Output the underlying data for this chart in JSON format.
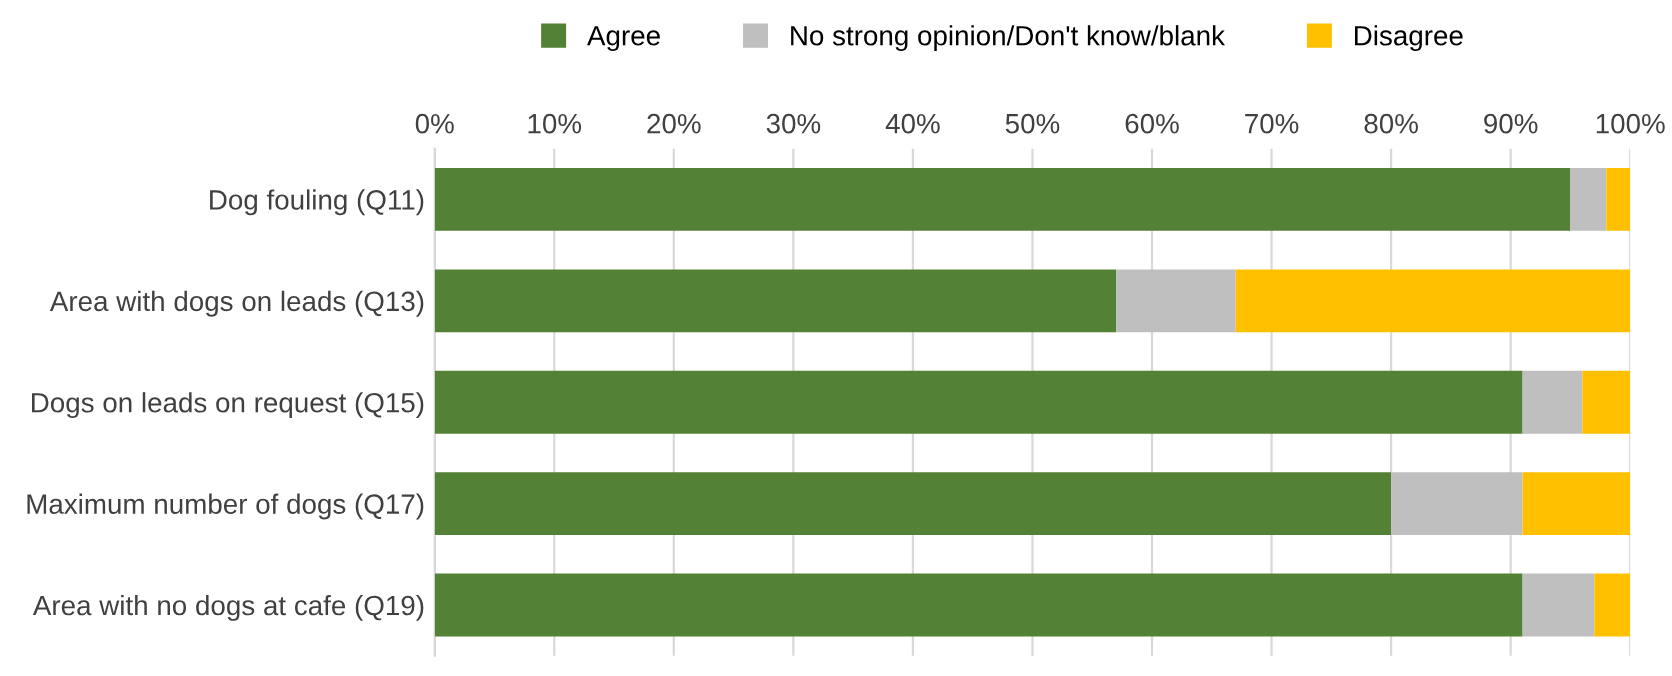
{
  "chart_data": {
    "type": "bar",
    "orientation": "horizontal",
    "stacked": true,
    "categories": [
      "Dog fouling (Q11)",
      "Area with dogs on leads (Q13)",
      "Dogs on leads on request (Q15)",
      "Maximum number of dogs (Q17)",
      "Area with no dogs at cafe (Q19)"
    ],
    "series": [
      {
        "name": "Agree",
        "color": "#538135",
        "values": [
          95,
          57,
          91,
          80,
          91
        ]
      },
      {
        "name": "No strong opinion/Don't know/blank",
        "color": "#bfbfbf",
        "values": [
          3,
          10,
          5,
          11,
          6
        ]
      },
      {
        "name": "Disagree",
        "color": "#ffc000",
        "values": [
          2,
          33,
          4,
          9,
          3
        ]
      }
    ],
    "xlim": [
      0,
      100
    ],
    "xticks": [
      {
        "value": 0,
        "label": "0%"
      },
      {
        "value": 10,
        "label": "10%"
      },
      {
        "value": 20,
        "label": "20%"
      },
      {
        "value": 30,
        "label": "30%"
      },
      {
        "value": 40,
        "label": "40%"
      },
      {
        "value": 50,
        "label": "50%"
      },
      {
        "value": 60,
        "label": "60%"
      },
      {
        "value": 70,
        "label": "70%"
      },
      {
        "value": 80,
        "label": "80%"
      },
      {
        "value": 90,
        "label": "90%"
      },
      {
        "value": 100,
        "label": "100%"
      }
    ],
    "grid": "x",
    "legend": "top"
  }
}
